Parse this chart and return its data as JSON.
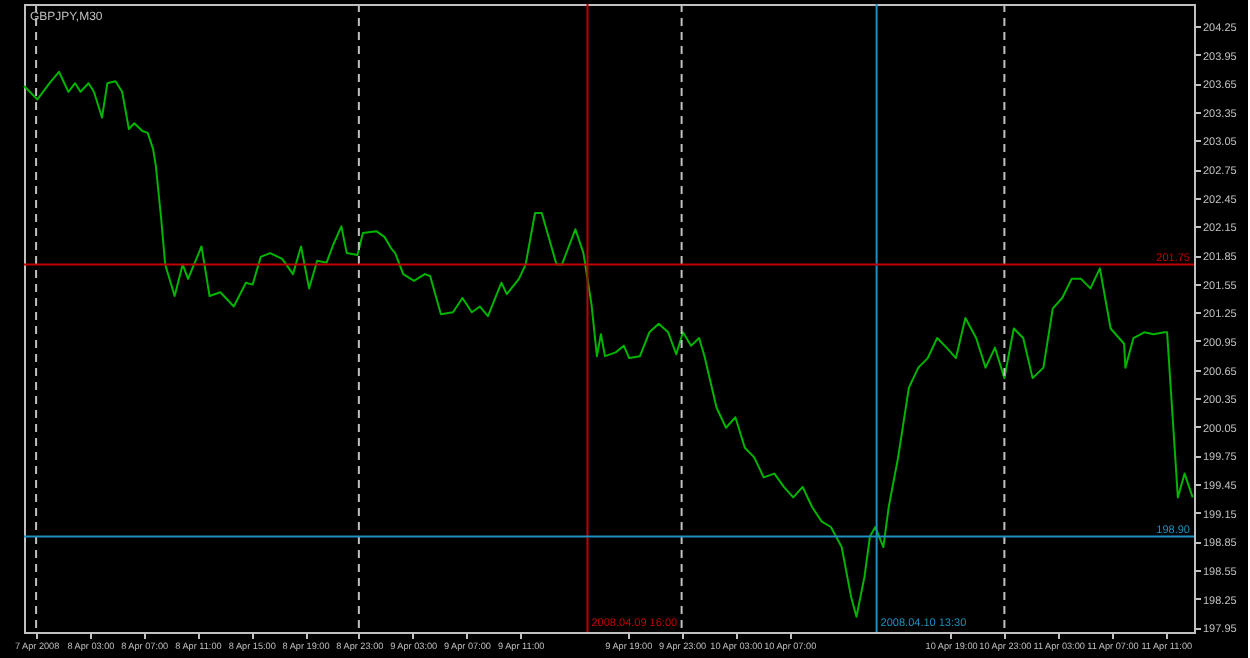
{
  "chart_data": {
    "type": "line",
    "title": "GBPJPY,M30",
    "x": [
      "2008-04-07T22:06",
      "2008-04-07T23:06",
      "2008-04-08T00:00",
      "2008-04-08T00:42",
      "2008-04-08T01:24",
      "2008-04-08T01:54",
      "2008-04-08T02:18",
      "2008-04-08T02:54",
      "2008-04-08T03:18",
      "2008-04-08T03:54",
      "2008-04-08T04:18",
      "2008-04-08T04:54",
      "2008-04-08T05:24",
      "2008-04-08T05:54",
      "2008-04-08T06:18",
      "2008-04-08T06:54",
      "2008-04-08T07:18",
      "2008-04-08T07:42",
      "2008-04-08T07:54",
      "2008-04-08T08:18",
      "2008-04-08T08:36",
      "2008-04-08T09:18",
      "2008-04-08T09:54",
      "2008-04-08T10:18",
      "2008-04-08T11:18",
      "2008-04-08T11:54",
      "2008-04-08T12:42",
      "2008-04-08T13:42",
      "2008-04-08T14:36",
      "2008-04-08T15:06",
      "2008-04-08T15:42",
      "2008-04-08T16:24",
      "2008-04-08T17:18",
      "2008-04-08T18:06",
      "2008-04-08T18:42",
      "2008-04-08T19:18",
      "2008-04-08T19:54",
      "2008-04-08T20:36",
      "2008-04-08T21:06",
      "2008-04-08T21:42",
      "2008-04-08T22:06",
      "2008-04-08T22:54",
      "2008-04-08T23:18",
      "2008-04-09T00:18",
      "2008-04-09T00:54",
      "2008-04-09T01:24",
      "2008-04-09T01:42",
      "2008-04-09T02:18",
      "2008-04-09T03:06",
      "2008-04-09T03:54",
      "2008-04-09T04:18",
      "2008-04-09T05:06",
      "2008-04-09T06:00",
      "2008-04-09T06:42",
      "2008-04-09T07:24",
      "2008-04-09T08:00",
      "2008-04-09T08:36",
      "2008-04-09T09:36",
      "2008-04-09T10:00",
      "2008-04-09T10:54",
      "2008-04-09T11:24",
      "2008-04-09T12:06",
      "2008-04-09T12:36",
      "2008-04-09T13:42",
      "2008-04-09T14:06",
      "2008-04-09T15:06",
      "2008-04-09T15:42",
      "2008-04-09T16:18",
      "2008-04-09T16:42",
      "2008-04-09T17:00",
      "2008-04-09T17:18",
      "2008-04-09T18:06",
      "2008-04-09T18:42",
      "2008-04-09T19:06",
      "2008-04-09T19:54",
      "2008-04-09T20:36",
      "2008-04-09T21:18",
      "2008-04-09T22:00",
      "2008-04-09T22:36",
      "2008-04-09T23:06",
      "2008-04-09T23:42",
      "2008-04-10T00:18",
      "2008-04-10T00:42",
      "2008-04-10T01:36",
      "2008-04-10T02:18",
      "2008-04-10T03:00",
      "2008-04-10T03:42",
      "2008-04-10T04:24",
      "2008-04-10T05:06",
      "2008-04-10T05:54",
      "2008-04-10T06:36",
      "2008-04-10T07:18",
      "2008-04-10T08:00",
      "2008-04-10T08:42",
      "2008-04-10T09:24",
      "2008-04-10T10:06",
      "2008-04-10T10:54",
      "2008-04-10T11:36",
      "2008-04-10T12:00",
      "2008-04-10T12:36",
      "2008-04-10T13:00",
      "2008-04-10T13:24",
      "2008-04-10T14:00",
      "2008-04-10T14:24",
      "2008-04-10T15:06",
      "2008-04-10T15:54",
      "2008-04-10T16:36",
      "2008-04-10T17:18",
      "2008-04-10T18:00",
      "2008-04-10T18:42",
      "2008-04-10T19:24",
      "2008-04-10T20:06",
      "2008-04-10T20:54",
      "2008-04-10T21:36",
      "2008-04-10T22:18",
      "2008-04-10T23:00",
      "2008-04-10T23:42",
      "2008-04-11T00:24",
      "2008-04-11T01:06",
      "2008-04-11T01:54",
      "2008-04-11T02:36",
      "2008-04-11T03:18",
      "2008-04-11T04:00",
      "2008-04-11T04:42",
      "2008-04-11T05:24",
      "2008-04-11T06:06",
      "2008-04-11T06:54",
      "2008-04-11T07:54",
      "2008-04-11T08:00",
      "2008-04-11T08:36",
      "2008-04-11T09:24",
      "2008-04-11T10:06",
      "2008-04-11T10:54",
      "2008-04-11T11:06",
      "2008-04-11T11:54",
      "2008-04-11T12:24",
      "2008-04-11T13:00"
    ],
    "series": [
      {
        "color": "#00b400",
        "values": [
          203.62,
          203.48,
          203.65,
          203.77,
          203.56,
          203.65,
          203.56,
          203.65,
          203.56,
          203.29,
          203.65,
          203.67,
          203.56,
          203.17,
          203.23,
          203.15,
          203.13,
          202.96,
          202.79,
          202.23,
          201.75,
          201.42,
          201.75,
          201.6,
          201.94,
          201.42,
          201.46,
          201.31,
          201.56,
          201.54,
          201.83,
          201.87,
          201.81,
          201.65,
          201.94,
          201.5,
          201.79,
          201.77,
          201.96,
          202.15,
          201.87,
          201.85,
          202.08,
          202.1,
          202.04,
          201.92,
          201.87,
          201.65,
          201.58,
          201.65,
          201.63,
          201.23,
          201.25,
          201.4,
          201.25,
          201.31,
          201.21,
          201.56,
          201.44,
          201.6,
          201.75,
          202.29,
          202.29,
          201.75,
          201.75,
          202.12,
          201.87,
          201.33,
          200.79,
          201.02,
          200.79,
          200.83,
          200.9,
          200.77,
          200.79,
          201.04,
          201.13,
          201.04,
          200.81,
          201.04,
          200.9,
          200.98,
          200.79,
          200.25,
          200.04,
          200.15,
          199.83,
          199.73,
          199.52,
          199.56,
          199.42,
          199.31,
          199.42,
          199.21,
          199.06,
          199.0,
          198.79,
          198.27,
          198.06,
          198.48,
          198.9,
          199.0,
          198.79,
          199.21,
          199.73,
          200.46,
          200.67,
          200.77,
          200.98,
          200.88,
          200.77,
          201.19,
          200.98,
          200.67,
          200.88,
          200.56,
          201.08,
          200.98,
          200.56,
          200.67,
          201.29,
          201.4,
          201.6,
          201.6,
          201.5,
          201.71,
          201.08,
          200.92,
          200.67,
          200.98,
          201.04,
          201.02,
          201.04,
          201.04,
          199.31,
          199.56,
          199.31
        ]
      }
    ],
    "xlim": [
      "2008-04-07T22:06",
      "2008-04-11T13:06"
    ],
    "xticks": [
      {
        "value": "2008-04-07T23:00",
        "label": "7 Apr 2008"
      },
      {
        "value": "2008-04-08T03:00",
        "label": "8 Apr 03:00"
      },
      {
        "value": "2008-04-08T07:00",
        "label": "8 Apr 07:00"
      },
      {
        "value": "2008-04-08T11:00",
        "label": "8 Apr 11:00"
      },
      {
        "value": "2008-04-08T15:00",
        "label": "8 Apr 15:00"
      },
      {
        "value": "2008-04-08T19:00",
        "label": "8 Apr 19:00"
      },
      {
        "value": "2008-04-08T23:00",
        "label": "8 Apr 23:00"
      },
      {
        "value": "2008-04-09T03:00",
        "label": "9 Apr 03:00"
      },
      {
        "value": "2008-04-09T07:00",
        "label": "9 Apr 07:00"
      },
      {
        "value": "2008-04-09T11:00",
        "label": "9 Apr 11:00"
      },
      {
        "value": "2008-04-09T19:00",
        "label": "9 Apr 19:00"
      },
      {
        "value": "2008-04-09T23:00",
        "label": "9 Apr 23:00"
      },
      {
        "value": "2008-04-10T03:00",
        "label": "10 Apr 03:00"
      },
      {
        "value": "2008-04-10T07:00",
        "label": "10 Apr 07:00"
      },
      {
        "value": "2008-04-10T19:00",
        "label": "10 Apr 19:00"
      },
      {
        "value": "2008-04-10T23:00",
        "label": "10 Apr 23:00"
      },
      {
        "value": "2008-04-11T03:00",
        "label": "11 Apr 03:00"
      },
      {
        "value": "2008-04-11T07:00",
        "label": "11 Apr 07:00"
      },
      {
        "value": "2008-04-11T11:00",
        "label": "11 Apr 11:00"
      }
    ],
    "ylim": [
      197.9,
      204.48
    ],
    "yticks": [
      197.95,
      198.25,
      198.55,
      198.85,
      199.15,
      199.45,
      199.75,
      200.05,
      200.35,
      200.65,
      200.95,
      201.25,
      201.55,
      201.85,
      202.15,
      202.45,
      202.75,
      203.05,
      203.35,
      203.65,
      203.95,
      204.25
    ],
    "ref_lines": [
      {
        "axis": "x",
        "value": "2008-04-07T23:00",
        "color": "#c0c0c0",
        "line_style": "dashed"
      },
      {
        "axis": "x",
        "value": "2008-04-08T23:00",
        "color": "#c0c0c0",
        "line_style": "dashed"
      },
      {
        "axis": "x",
        "value": "2008-04-09T23:00",
        "color": "#c0c0c0",
        "line_style": "dashed"
      },
      {
        "axis": "x",
        "value": "2008-04-10T23:00",
        "color": "#c0c0c0",
        "line_style": "dashed"
      },
      {
        "axis": "x",
        "value": "2008-04-09T16:00",
        "label": "2008.04.09 16:00",
        "color": "#c00000",
        "line_style": "solid"
      },
      {
        "axis": "x",
        "value": "2008-04-10T13:30",
        "label": "2008.04.10 13:30",
        "color": "#1e90c0",
        "line_style": "solid"
      },
      {
        "axis": "y",
        "value": 201.75,
        "label": "201.75",
        "color": "#c00000",
        "line_style": "solid"
      },
      {
        "axis": "y",
        "value": 198.9,
        "label": "198.90",
        "color": "#1e90c0",
        "line_style": "solid"
      }
    ],
    "grid": false,
    "marker": "none",
    "line_style": "solid"
  }
}
